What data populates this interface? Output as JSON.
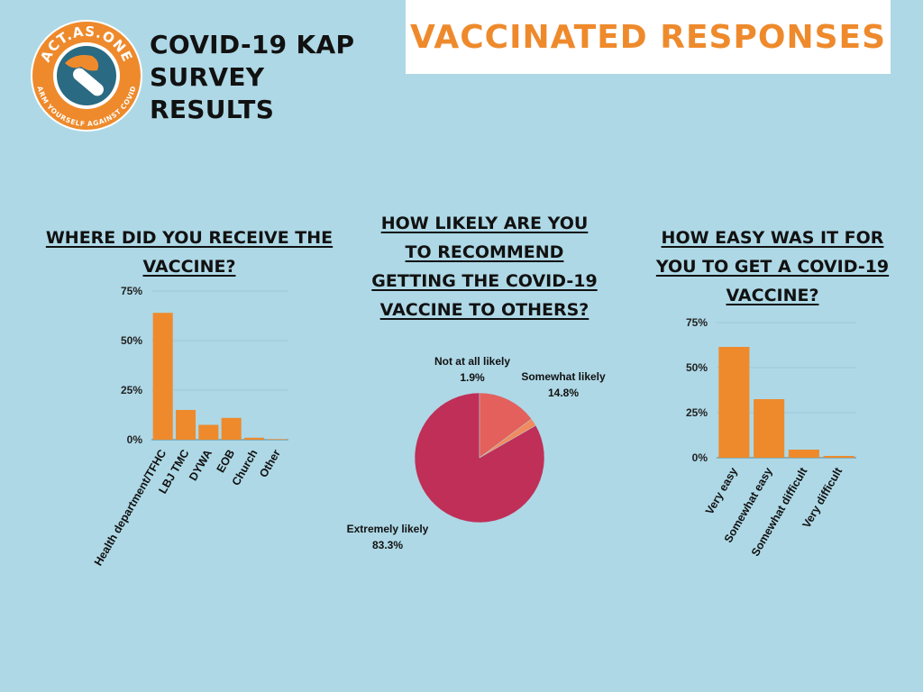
{
  "header": {
    "logo": {
      "name": "ACT.AS.ONE",
      "tagline": "ARM YOURSELF AGAINST COVID"
    },
    "title_lines": [
      "COVID-19 KAP",
      "SURVEY",
      "RESULTS"
    ],
    "banner": "VACCINATED RESPONSES"
  },
  "colors": {
    "background": "#aed8e6",
    "bar": "#ee8a2c",
    "banner_text": "#ee8a2c",
    "pie": [
      "#bf2f58",
      "#e3605c",
      "#f18b5e"
    ]
  },
  "chart_data": [
    {
      "type": "bar",
      "title": "WHERE DID YOU RECEIVE THE VACCINE?",
      "categories": [
        "Health department/TFHC",
        "LBJ TMC",
        "DYWA",
        "EOB",
        "Church",
        "Other"
      ],
      "values": [
        64,
        15,
        7.5,
        11,
        1,
        0.3
      ],
      "yticks": [
        "0%",
        "25%",
        "50%",
        "75%"
      ],
      "ylim": [
        0,
        75
      ],
      "grid": true
    },
    {
      "type": "pie",
      "title": "HOW LIKELY ARE YOU TO RECOMMEND GETTING THE COVID-19 VACCINE TO OTHERS?",
      "slices": [
        {
          "label": "Extremely likely",
          "value": 83.3,
          "text": "83.3%"
        },
        {
          "label": "Somewhat likely",
          "value": 14.8,
          "text": "14.8%"
        },
        {
          "label": "Not at all likely",
          "value": 1.9,
          "text": "1.9%"
        }
      ]
    },
    {
      "type": "bar",
      "title": "HOW EASY WAS IT FOR YOU TO GET A COVID-19 VACCINE?",
      "categories": [
        "Very easy",
        "Somewhat easy",
        "Somewhat difficult",
        "Very difficult"
      ],
      "values": [
        61.5,
        32.5,
        4.5,
        1
      ],
      "yticks": [
        "0%",
        "25%",
        "50%",
        "75%"
      ],
      "ylim": [
        0,
        75
      ],
      "grid": true
    }
  ]
}
